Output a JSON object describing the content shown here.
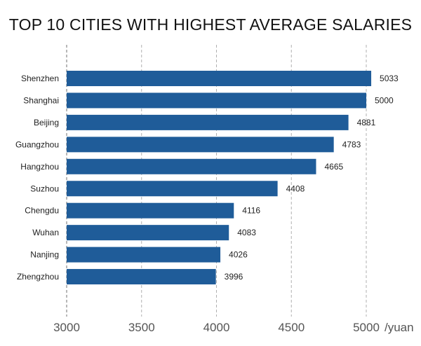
{
  "chart_data": {
    "type": "bar",
    "orientation": "horizontal",
    "title": "TOP 10 CITIES WITH HIGHEST AVERAGE SALARIES",
    "categories": [
      "Shenzhen",
      "Shanghai",
      "Beijing",
      "Guangzhou",
      "Hangzhou",
      "Suzhou",
      "Chengdu",
      "Wuhan",
      "Nanjing",
      "Zhengzhou"
    ],
    "values": [
      5033,
      5000,
      4881,
      4783,
      4665,
      4408,
      4116,
      4083,
      4026,
      3996
    ],
    "xlim": [
      3000,
      5000
    ],
    "xticks": [
      "3000",
      "3500",
      "4000",
      "4500",
      "5000"
    ],
    "x_unit": "/yuan",
    "grid": "vertical dashed",
    "bar_color": "#1f5c99"
  }
}
